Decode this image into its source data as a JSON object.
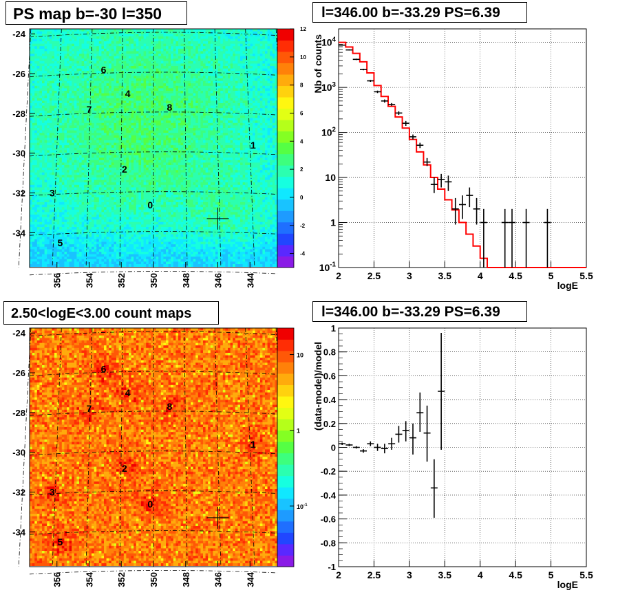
{
  "panels": {
    "ps_map": {
      "title": "PS map b=-30 l=350"
    },
    "spectrum": {
      "title": "l=346.00 b=-33.29 PS=6.39"
    },
    "count_map": {
      "title": "2.50<logE<3.00 count maps"
    },
    "residual": {
      "title": "l=346.00 b=-33.29 PS=6.39"
    }
  },
  "colors": {
    "palette": [
      "#8a1be6",
      "#5a28ff",
      "#2146ff",
      "#1f6fff",
      "#1e9bff",
      "#19c3ff",
      "#10e8ff",
      "#16ffe0",
      "#2bffb0",
      "#3dff7d",
      "#55ff44",
      "#84ff23",
      "#b5ff1a",
      "#e2ff14",
      "#fff710",
      "#ffd20e",
      "#ffab0c",
      "#ff8109",
      "#ff5807",
      "#ff2d05",
      "#f00000"
    ],
    "model_line": "#ff0000",
    "data": "#000000"
  },
  "chart_data": [
    {
      "type": "heatmap",
      "name": "ps_map",
      "title": "PS map b=-30 l=350",
      "x_ticks": [
        "356",
        "354",
        "352",
        "350",
        "348",
        "346",
        "344"
      ],
      "y_ticks": [
        "-24",
        "-26",
        "-28",
        "-30",
        "-32",
        "-34"
      ],
      "colorbar_ticks": [
        "12",
        "10",
        "8",
        "6",
        "4",
        "2",
        "0",
        "-2",
        "-4"
      ],
      "zlim": [
        -5,
        12
      ],
      "sources": [
        {
          "label": "0",
          "l": 350.2,
          "b": -32.6
        },
        {
          "label": "1",
          "l": 343.8,
          "b": -29.6
        },
        {
          "label": "2",
          "l": 351.8,
          "b": -30.8
        },
        {
          "label": "3",
          "l": 356.3,
          "b": -32.0
        },
        {
          "label": "4",
          "l": 351.6,
          "b": -27.0
        },
        {
          "label": "5",
          "l": 355.8,
          "b": -34.5
        },
        {
          "label": "6",
          "l": 353.1,
          "b": -25.8
        },
        {
          "label": "7",
          "l": 354.0,
          "b": -27.8
        },
        {
          "label": "8",
          "l": 349.0,
          "b": -27.7
        }
      ],
      "marker": {
        "l": 346.0,
        "b": -33.29
      }
    },
    {
      "type": "line",
      "name": "spectrum",
      "title": "l=346.00 b=-33.29 PS=6.39",
      "xlabel": "logE",
      "ylabel": "Nb of counts",
      "xlim": [
        2,
        5.5
      ],
      "ylim_log": [
        -1,
        4.3
      ],
      "log_y": true,
      "x_ticks": [
        "2",
        "2.5",
        "3",
        "3.5",
        "4",
        "4.5",
        "5",
        "5.5"
      ],
      "y_ticks": [
        "10^-1",
        "1",
        "10",
        "10^2",
        "10^3",
        "10^4"
      ],
      "model_steps": [
        {
          "x0": 2.0,
          "x1": 2.1,
          "y": 10000
        },
        {
          "x0": 2.1,
          "x1": 2.2,
          "y": 7900
        },
        {
          "x0": 2.2,
          "x1": 2.3,
          "y": 5700
        },
        {
          "x0": 2.3,
          "x1": 2.4,
          "y": 3700
        },
        {
          "x0": 2.4,
          "x1": 2.5,
          "y": 2100
        },
        {
          "x0": 2.5,
          "x1": 2.6,
          "y": 1100
        },
        {
          "x0": 2.6,
          "x1": 2.7,
          "y": 630
        },
        {
          "x0": 2.7,
          "x1": 2.8,
          "y": 380
        },
        {
          "x0": 2.8,
          "x1": 2.9,
          "y": 220
        },
        {
          "x0": 2.9,
          "x1": 3.0,
          "y": 125
        },
        {
          "x0": 3.0,
          "x1": 3.1,
          "y": 70
        },
        {
          "x0": 3.1,
          "x1": 3.2,
          "y": 37
        },
        {
          "x0": 3.2,
          "x1": 3.3,
          "y": 19
        },
        {
          "x0": 3.3,
          "x1": 3.4,
          "y": 10
        },
        {
          "x0": 3.4,
          "x1": 3.5,
          "y": 5.5
        },
        {
          "x0": 3.5,
          "x1": 3.6,
          "y": 3.2
        },
        {
          "x0": 3.6,
          "x1": 3.7,
          "y": 1.9
        },
        {
          "x0": 3.7,
          "x1": 3.8,
          "y": 1.0
        },
        {
          "x0": 3.8,
          "x1": 3.9,
          "y": 0.55
        },
        {
          "x0": 3.9,
          "x1": 4.0,
          "y": 0.3
        },
        {
          "x0": 4.0,
          "x1": 4.1,
          "y": 0.16
        },
        {
          "x0": 4.1,
          "x1": 5.5,
          "y": 0.1
        }
      ],
      "data_points": [
        {
          "x": 2.05,
          "y": 8700,
          "lo": 8500,
          "hi": 8900
        },
        {
          "x": 2.15,
          "y": 6800,
          "lo": 6600,
          "hi": 7000
        },
        {
          "x": 2.25,
          "y": 4200,
          "lo": 4050,
          "hi": 4350
        },
        {
          "x": 2.35,
          "y": 2500,
          "lo": 2400,
          "hi": 2600
        },
        {
          "x": 2.45,
          "y": 1400,
          "lo": 1330,
          "hi": 1470
        },
        {
          "x": 2.55,
          "y": 800,
          "lo": 750,
          "hi": 850
        },
        {
          "x": 2.65,
          "y": 500,
          "lo": 460,
          "hi": 540
        },
        {
          "x": 2.75,
          "y": 420,
          "lo": 390,
          "hi": 450
        },
        {
          "x": 2.85,
          "y": 270,
          "lo": 245,
          "hi": 295
        },
        {
          "x": 2.95,
          "y": 160,
          "lo": 140,
          "hi": 180
        },
        {
          "x": 3.05,
          "y": 80,
          "lo": 70,
          "hi": 90
        },
        {
          "x": 3.15,
          "y": 52,
          "lo": 45,
          "hi": 59
        },
        {
          "x": 3.25,
          "y": 22,
          "lo": 18,
          "hi": 27
        },
        {
          "x": 3.35,
          "y": 7,
          "lo": 4.5,
          "hi": 10
        },
        {
          "x": 3.45,
          "y": 9,
          "lo": 6,
          "hi": 12
        },
        {
          "x": 3.55,
          "y": 8,
          "lo": 5,
          "hi": 11
        },
        {
          "x": 3.65,
          "y": 2,
          "lo": 0.9,
          "hi": 3.5
        },
        {
          "x": 3.75,
          "y": 2.5,
          "lo": 1.2,
          "hi": 4
        },
        {
          "x": 3.85,
          "y": 4,
          "lo": 2.2,
          "hi": 6
        },
        {
          "x": 3.95,
          "y": 2,
          "lo": 0.9,
          "hi": 3.5
        },
        {
          "x": 4.05,
          "y": 1,
          "lo": 0.1,
          "hi": 2
        },
        {
          "x": 4.35,
          "y": 1,
          "lo": 0.1,
          "hi": 2
        },
        {
          "x": 4.45,
          "y": 1,
          "lo": 0.1,
          "hi": 2
        },
        {
          "x": 4.65,
          "y": 1,
          "lo": 0.1,
          "hi": 2
        },
        {
          "x": 4.95,
          "y": 1,
          "lo": 0.1,
          "hi": 2
        }
      ]
    },
    {
      "type": "heatmap",
      "name": "count_map",
      "title": "2.50<logE<3.00 count maps",
      "x_ticks": [
        "356",
        "354",
        "352",
        "350",
        "348",
        "346",
        "344"
      ],
      "y_ticks": [
        "-24",
        "-26",
        "-28",
        "-30",
        "-32",
        "-34"
      ],
      "colorbar_ticks": [
        "10",
        "1",
        "10^-1"
      ],
      "log_z": true,
      "sources": [
        {
          "label": "0",
          "l": 350.2,
          "b": -32.6
        },
        {
          "label": "1",
          "l": 343.8,
          "b": -29.6
        },
        {
          "label": "2",
          "l": 351.8,
          "b": -30.8
        },
        {
          "label": "3",
          "l": 356.3,
          "b": -32.0
        },
        {
          "label": "4",
          "l": 351.6,
          "b": -27.0
        },
        {
          "label": "5",
          "l": 355.8,
          "b": -34.5
        },
        {
          "label": "6",
          "l": 353.1,
          "b": -25.8
        },
        {
          "label": "7",
          "l": 354.0,
          "b": -27.8
        },
        {
          "label": "8",
          "l": 349.0,
          "b": -27.7
        }
      ],
      "marker": {
        "l": 346.0,
        "b": -33.29
      }
    },
    {
      "type": "scatter",
      "name": "residual",
      "title": "l=346.00 b=-33.29 PS=6.39",
      "xlabel": "logE",
      "ylabel": "(data-model)/model",
      "xlim": [
        2,
        5.5
      ],
      "ylim": [
        -1,
        1
      ],
      "x_ticks": [
        "2",
        "2.5",
        "3",
        "3.5",
        "4",
        "4.5",
        "5",
        "5.5"
      ],
      "y_ticks": [
        "1",
        "0.8",
        "0.6",
        "0.4",
        "0.2",
        "0",
        "-0.2",
        "-0.4",
        "-0.6",
        "-0.8",
        "-1"
      ],
      "data_points": [
        {
          "x": 2.05,
          "y": 0.03,
          "lo": 0.02,
          "hi": 0.04
        },
        {
          "x": 2.15,
          "y": 0.02,
          "lo": 0.01,
          "hi": 0.03
        },
        {
          "x": 2.25,
          "y": 0.0,
          "lo": -0.01,
          "hi": 0.01
        },
        {
          "x": 2.35,
          "y": -0.03,
          "lo": -0.045,
          "hi": -0.015
        },
        {
          "x": 2.45,
          "y": 0.03,
          "lo": 0.01,
          "hi": 0.05
        },
        {
          "x": 2.55,
          "y": 0.0,
          "lo": -0.03,
          "hi": 0.03
        },
        {
          "x": 2.65,
          "y": -0.01,
          "lo": -0.05,
          "hi": 0.03
        },
        {
          "x": 2.75,
          "y": 0.03,
          "lo": -0.02,
          "hi": 0.08
        },
        {
          "x": 2.85,
          "y": 0.11,
          "lo": 0.04,
          "hi": 0.18
        },
        {
          "x": 2.95,
          "y": 0.14,
          "lo": 0.05,
          "hi": 0.22
        },
        {
          "x": 3.05,
          "y": 0.08,
          "lo": -0.06,
          "hi": 0.2
        },
        {
          "x": 3.15,
          "y": 0.29,
          "lo": 0.13,
          "hi": 0.46
        },
        {
          "x": 3.25,
          "y": 0.12,
          "lo": -0.12,
          "hi": 0.35
        },
        {
          "x": 3.35,
          "y": -0.34,
          "lo": -0.59,
          "hi": -0.1
        },
        {
          "x": 3.45,
          "y": 0.47,
          "lo": -0.02,
          "hi": 0.96
        }
      ]
    }
  ]
}
